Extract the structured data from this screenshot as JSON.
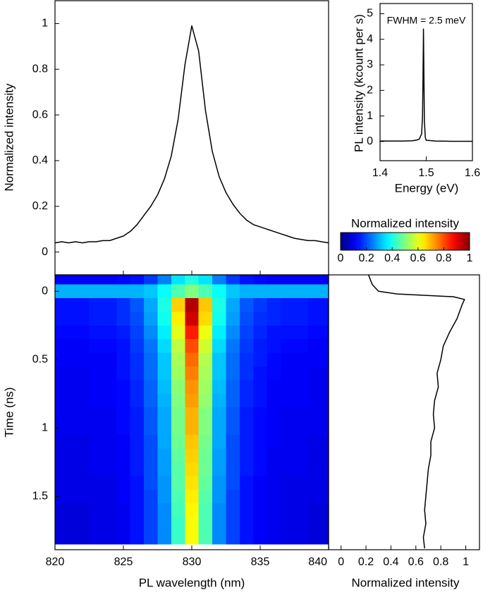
{
  "chart_data": [
    {
      "type": "line",
      "ylabel": "Normalized intensity",
      "x": [
        820,
        820.5,
        821,
        821.5,
        822,
        822.5,
        823,
        823.5,
        824,
        824.5,
        825,
        825.5,
        826,
        826.5,
        827,
        827.5,
        828,
        828.5,
        829,
        829.5,
        830,
        830.5,
        831,
        831.5,
        832,
        832.5,
        833,
        833.5,
        834,
        834.5,
        835,
        835.5,
        836,
        836.5,
        837,
        837.5,
        838,
        838.5,
        839,
        839.5,
        840
      ],
      "values": [
        0.04,
        0.045,
        0.04,
        0.045,
        0.04,
        0.045,
        0.045,
        0.05,
        0.05,
        0.06,
        0.07,
        0.09,
        0.12,
        0.16,
        0.2,
        0.25,
        0.32,
        0.42,
        0.58,
        0.82,
        0.99,
        0.88,
        0.62,
        0.44,
        0.33,
        0.26,
        0.21,
        0.17,
        0.14,
        0.12,
        0.11,
        0.1,
        0.09,
        0.08,
        0.07,
        0.06,
        0.055,
        0.05,
        0.05,
        0.045,
        0.04
      ],
      "color": "#000000",
      "xlim": [
        820,
        840
      ],
      "xticks": [
        825,
        830,
        835
      ],
      "show_xtick_labels": false,
      "ylim": [
        -0.1,
        1.1
      ],
      "yticks": [
        0,
        0.2,
        0.4,
        0.6,
        0.8,
        1
      ]
    },
    {
      "type": "line",
      "xlabel": "Energy (eV)",
      "ylabel": "PL intensity (kcount per s)",
      "annotation": "FWHM = 2.5 meV",
      "x": [
        1.4,
        1.45,
        1.47,
        1.48,
        1.485,
        1.49,
        1.492,
        1.493,
        1.494,
        1.495,
        1.496,
        1.498,
        1.5,
        1.52,
        1.55,
        1.6
      ],
      "values": [
        0.02,
        0.02,
        0.03,
        0.06,
        0.1,
        0.3,
        1.0,
        2.5,
        4.4,
        2.5,
        0.8,
        0.15,
        0.05,
        0.02,
        0.01,
        0.01
      ],
      "color": "#000000",
      "xlim": [
        1.4,
        1.6
      ],
      "xticks": [
        1.4,
        1.5,
        1.6
      ],
      "show_xtick_labels": true,
      "ylim": [
        -0.75,
        5.4
      ],
      "yticks": [
        0,
        1,
        2,
        3,
        4,
        5
      ]
    },
    {
      "type": "heatmap",
      "xlabel": "PL wavelength (nm)",
      "ylabel": "Time (ns)",
      "colormap": "jet",
      "colorbar": {
        "label": "Normalized intensity",
        "zlim": [
          0,
          1
        ],
        "ticks": [
          0,
          0.2,
          0.4,
          0.6,
          0.8,
          1
        ]
      },
      "x": [
        820,
        821,
        822,
        823,
        824,
        825,
        826,
        827,
        828,
        829,
        830,
        831,
        832,
        833,
        834,
        835,
        836,
        837,
        838,
        839,
        840
      ],
      "y": [
        -0.1,
        0,
        0.1,
        0.2,
        0.3,
        0.4,
        0.5,
        0.6,
        0.7,
        0.8,
        0.9,
        1,
        1.1,
        1.2,
        1.3,
        1.4,
        1.5,
        1.6,
        1.7,
        1.8
      ],
      "z": [
        [
          0.12,
          0.12,
          0.12,
          0.12,
          0.12,
          0.13,
          0.14,
          0.18,
          0.25,
          0.35,
          0.4,
          0.35,
          0.25,
          0.18,
          0.14,
          0.13,
          0.12,
          0.12,
          0.12,
          0.12,
          0.12
        ],
        [
          0.3,
          0.3,
          0.3,
          0.3,
          0.3,
          0.3,
          0.3,
          0.32,
          0.38,
          0.45,
          0.5,
          0.45,
          0.38,
          0.32,
          0.3,
          0.3,
          0.3,
          0.3,
          0.3,
          0.3,
          0.3
        ],
        [
          0.14,
          0.14,
          0.14,
          0.15,
          0.15,
          0.17,
          0.21,
          0.29,
          0.4,
          0.67,
          0.95,
          0.68,
          0.4,
          0.29,
          0.21,
          0.18,
          0.16,
          0.15,
          0.15,
          0.14,
          0.14
        ],
        [
          0.14,
          0.14,
          0.14,
          0.15,
          0.15,
          0.17,
          0.2,
          0.28,
          0.39,
          0.64,
          0.92,
          0.66,
          0.39,
          0.28,
          0.2,
          0.17,
          0.16,
          0.15,
          0.15,
          0.14,
          0.14
        ],
        [
          0.13,
          0.13,
          0.13,
          0.14,
          0.14,
          0.15,
          0.19,
          0.26,
          0.36,
          0.6,
          0.85,
          0.61,
          0.36,
          0.26,
          0.19,
          0.16,
          0.14,
          0.14,
          0.14,
          0.13,
          0.13
        ],
        [
          0.12,
          0.12,
          0.12,
          0.13,
          0.13,
          0.14,
          0.18,
          0.24,
          0.34,
          0.56,
          0.8,
          0.58,
          0.34,
          0.24,
          0.18,
          0.15,
          0.14,
          0.13,
          0.13,
          0.12,
          0.12
        ],
        [
          0.12,
          0.12,
          0.12,
          0.12,
          0.12,
          0.14,
          0.17,
          0.23,
          0.32,
          0.54,
          0.77,
          0.55,
          0.32,
          0.23,
          0.17,
          0.15,
          0.13,
          0.12,
          0.12,
          0.12,
          0.12
        ],
        [
          0.11,
          0.11,
          0.11,
          0.12,
          0.12,
          0.14,
          0.17,
          0.23,
          0.32,
          0.53,
          0.75,
          0.54,
          0.32,
          0.23,
          0.17,
          0.14,
          0.13,
          0.12,
          0.12,
          0.11,
          0.11
        ],
        [
          0.11,
          0.11,
          0.11,
          0.12,
          0.12,
          0.13,
          0.16,
          0.22,
          0.31,
          0.51,
          0.73,
          0.53,
          0.31,
          0.22,
          0.16,
          0.14,
          0.12,
          0.12,
          0.12,
          0.11,
          0.11
        ],
        [
          0.11,
          0.11,
          0.11,
          0.12,
          0.12,
          0.13,
          0.16,
          0.22,
          0.3,
          0.5,
          0.72,
          0.52,
          0.3,
          0.22,
          0.16,
          0.14,
          0.12,
          0.12,
          0.12,
          0.11,
          0.11
        ],
        [
          0.11,
          0.11,
          0.11,
          0.11,
          0.11,
          0.13,
          0.15,
          0.21,
          0.29,
          0.49,
          0.7,
          0.5,
          0.29,
          0.21,
          0.15,
          0.13,
          0.12,
          0.11,
          0.11,
          0.11,
          0.11
        ],
        [
          0.11,
          0.11,
          0.11,
          0.11,
          0.11,
          0.13,
          0.15,
          0.21,
          0.29,
          0.49,
          0.7,
          0.5,
          0.29,
          0.21,
          0.15,
          0.13,
          0.12,
          0.11,
          0.11,
          0.11,
          0.11
        ],
        [
          0.1,
          0.1,
          0.1,
          0.11,
          0.11,
          0.12,
          0.15,
          0.2,
          0.29,
          0.48,
          0.68,
          0.49,
          0.29,
          0.2,
          0.15,
          0.13,
          0.12,
          0.11,
          0.11,
          0.1,
          0.1
        ],
        [
          0.1,
          0.1,
          0.1,
          0.11,
          0.11,
          0.12,
          0.15,
          0.2,
          0.28,
          0.47,
          0.67,
          0.48,
          0.28,
          0.2,
          0.15,
          0.13,
          0.11,
          0.11,
          0.11,
          0.1,
          0.1
        ],
        [
          0.1,
          0.1,
          0.1,
          0.11,
          0.11,
          0.12,
          0.15,
          0.2,
          0.28,
          0.46,
          0.66,
          0.48,
          0.28,
          0.2,
          0.15,
          0.13,
          0.11,
          0.11,
          0.11,
          0.1,
          0.1
        ],
        [
          0.1,
          0.1,
          0.1,
          0.1,
          0.1,
          0.12,
          0.14,
          0.2,
          0.27,
          0.46,
          0.65,
          0.47,
          0.27,
          0.2,
          0.14,
          0.12,
          0.11,
          0.1,
          0.1,
          0.1,
          0.1
        ],
        [
          0.1,
          0.1,
          0.1,
          0.1,
          0.1,
          0.12,
          0.14,
          0.19,
          0.27,
          0.45,
          0.64,
          0.46,
          0.27,
          0.19,
          0.14,
          0.12,
          0.11,
          0.1,
          0.1,
          0.1,
          0.1
        ],
        [
          0.09,
          0.09,
          0.09,
          0.1,
          0.1,
          0.11,
          0.14,
          0.19,
          0.26,
          0.44,
          0.63,
          0.45,
          0.26,
          0.19,
          0.14,
          0.12,
          0.11,
          0.1,
          0.1,
          0.09,
          0.09
        ],
        [
          0.09,
          0.09,
          0.09,
          0.1,
          0.1,
          0.11,
          0.14,
          0.19,
          0.26,
          0.43,
          0.62,
          0.45,
          0.26,
          0.19,
          0.14,
          0.12,
          0.11,
          0.1,
          0.1,
          0.09,
          0.09
        ],
        [
          0.09,
          0.09,
          0.09,
          0.1,
          0.1,
          0.11,
          0.14,
          0.19,
          0.26,
          0.43,
          0.62,
          0.45,
          0.26,
          0.19,
          0.14,
          0.12,
          0.11,
          0.1,
          0.1,
          0.09,
          0.09
        ]
      ],
      "xlim": [
        820,
        840
      ],
      "xticks": [
        820,
        825,
        830,
        835,
        840
      ],
      "show_xtick_labels": true,
      "ylim": [
        1.89,
        -0.12
      ],
      "yticks": [
        0,
        0.5,
        1,
        1.5
      ]
    },
    {
      "type": "line",
      "orientation": "vertical",
      "xlabel": "Normalized intensity",
      "y": [
        -0.12,
        -0.05,
        0,
        0.02,
        0.04,
        0.06,
        0.1,
        0.2,
        0.3,
        0.4,
        0.5,
        0.6,
        0.7,
        0.8,
        0.9,
        1,
        1.1,
        1.2,
        1.3,
        1.4,
        1.5,
        1.6,
        1.7,
        1.8,
        1.88
      ],
      "values": [
        0.22,
        0.25,
        0.3,
        0.45,
        0.9,
        0.99,
        0.97,
        0.93,
        0.87,
        0.82,
        0.8,
        0.77,
        0.78,
        0.75,
        0.74,
        0.75,
        0.72,
        0.72,
        0.7,
        0.69,
        0.68,
        0.67,
        0.68,
        0.66,
        0.67
      ],
      "color": "#000000",
      "xlim": [
        -0.1,
        1.11
      ],
      "xticks": [
        0,
        0.2,
        0.4,
        0.6,
        0.8,
        1
      ],
      "show_xtick_labels": true,
      "ylim": [
        1.89,
        -0.12
      ]
    }
  ]
}
